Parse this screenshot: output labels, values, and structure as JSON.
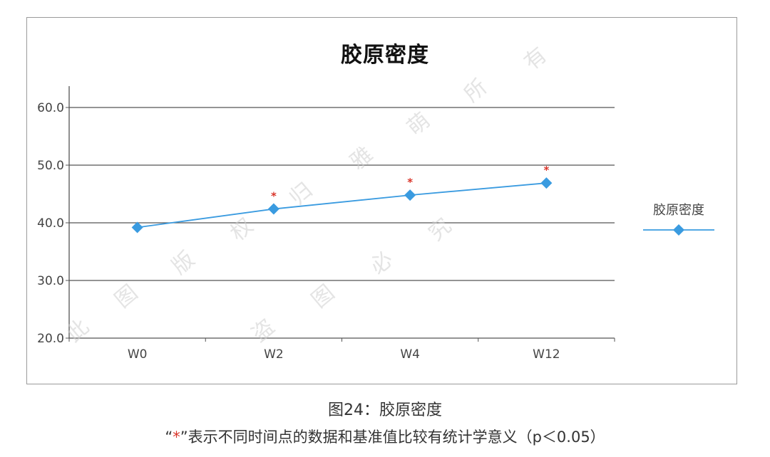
{
  "chart_data": {
    "type": "line",
    "title": "胶原密度",
    "categories": [
      "W0",
      "W2",
      "W4",
      "W12"
    ],
    "series": [
      {
        "name": "胶原密度",
        "values": [
          39.2,
          42.4,
          44.8,
          46.9
        ],
        "color": "#3a9be0"
      }
    ],
    "significant": [
      false,
      true,
      true,
      true
    ],
    "significance_mark": "*",
    "significance_color": "#d9352a",
    "ylim": [
      20,
      60
    ],
    "yticks": [
      "20.0",
      "30.0",
      "40.0",
      "50.0",
      "60.0"
    ],
    "grid": true,
    "legend_position": "right"
  },
  "caption": "图24：胶原密度",
  "note": {
    "open_quote": "“",
    "star": "*",
    "close_quote": "”",
    "text": "表示不同时间点的数据和基准值比较有统计学意义（p＜0.05）"
  },
  "watermark": [
    "此",
    "图",
    "版",
    "权",
    "归",
    "雅",
    "萌",
    "所",
    "有",
    "盗",
    "图",
    "必",
    "究"
  ]
}
